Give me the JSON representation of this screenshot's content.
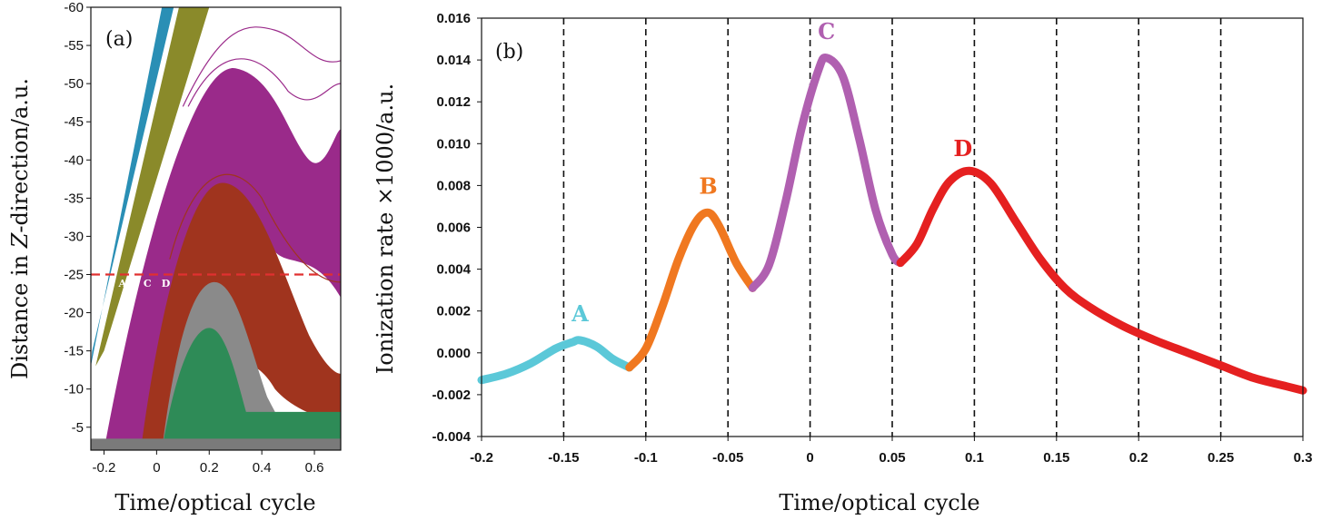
{
  "chart_data": [
    {
      "panel_label": "(a)",
      "type": "line",
      "xlabel": "Time/optical cycle",
      "ylabel_prefix": "Distance in ",
      "ylabel_italic": "Z",
      "ylabel_suffix": "-direction/a.u.",
      "xlim": [
        -0.25,
        0.7
      ],
      "ylim": [
        -2,
        -60
      ],
      "xticks": [
        -0.2,
        0,
        0.2,
        0.4,
        0.6
      ],
      "xtick_labels": [
        "-0.2",
        "0",
        "0.2",
        "0.4",
        "0.6"
      ],
      "yticks": [
        -5,
        -10,
        -15,
        -20,
        -25,
        -30,
        -35,
        -40,
        -45,
        -50,
        -55,
        -60
      ],
      "ytick_labels": [
        "-5",
        "-10",
        "-15",
        "-20",
        "-25",
        "-30",
        "-35",
        "-40",
        "-45",
        "-50",
        "-55",
        "-60"
      ],
      "reference_line": {
        "y": -25,
        "color": "#e03030",
        "style": "dashed"
      },
      "band_labels": [
        "A",
        "B",
        "C",
        "D"
      ],
      "colors": {
        "A": "#2a8fb5",
        "B": "#8a8a2a",
        "C": "#9a2a8a",
        "D": "#a0341e",
        "gray": "#8a8a8a",
        "green": "#2e8b57"
      }
    },
    {
      "panel_label": "(b)",
      "type": "line",
      "xlabel": "Time/optical cycle",
      "ylabel": "Ionization rate ×1000/a.u.",
      "xlim": [
        -0.2,
        0.3
      ],
      "ylim": [
        -0.004,
        0.016
      ],
      "xticks": [
        -0.2,
        -0.15,
        -0.1,
        -0.05,
        0,
        0.05,
        0.1,
        0.15,
        0.2,
        0.25,
        0.3
      ],
      "xtick_labels": [
        "-0.2",
        "-0.15",
        "-0.1",
        "-0.05",
        "0",
        "0.05",
        "0.1",
        "0.15",
        "0.2",
        "0.25",
        "0.3"
      ],
      "yticks": [
        -0.004,
        -0.002,
        0,
        0.002,
        0.004,
        0.006,
        0.008,
        0.01,
        0.012,
        0.014,
        0.016
      ],
      "ytick_labels": [
        "-0.004",
        "-0.002",
        "0.000",
        "0.002",
        "0.004",
        "0.006",
        "0.008",
        "0.010",
        "0.012",
        "0.014",
        "0.016"
      ],
      "vlines": [
        -0.15,
        -0.1,
        -0.05,
        0,
        0.05,
        0.1,
        0.15,
        0.2,
        0.25
      ],
      "series": [
        {
          "name": "A",
          "color": "#5bc8d8",
          "x": [
            -0.2,
            -0.185,
            -0.17,
            -0.155,
            -0.145,
            -0.14,
            -0.13,
            -0.12,
            -0.11
          ],
          "y": [
            -0.0013,
            -0.001,
            -0.0005,
            0.0002,
            0.0005,
            0.0006,
            0.0003,
            -0.0003,
            -0.0007
          ]
        },
        {
          "name": "B",
          "color": "#f07820",
          "x": [
            -0.11,
            -0.1,
            -0.09,
            -0.08,
            -0.07,
            -0.062,
            -0.055,
            -0.045,
            -0.035
          ],
          "y": [
            -0.0007,
            0.0002,
            0.0022,
            0.0045,
            0.0062,
            0.0067,
            0.006,
            0.0043,
            0.0031
          ]
        },
        {
          "name": "C",
          "color": "#b060b0",
          "x": [
            -0.035,
            -0.025,
            -0.015,
            -0.005,
            0.005,
            0.01,
            0.02,
            0.03,
            0.04,
            0.05,
            0.055
          ],
          "y": [
            0.0031,
            0.0042,
            0.0072,
            0.0108,
            0.0135,
            0.0141,
            0.0132,
            0.0102,
            0.0068,
            0.0047,
            0.0043
          ]
        },
        {
          "name": "D",
          "color": "#e52020",
          "x": [
            0.055,
            0.065,
            0.075,
            0.085,
            0.097,
            0.11,
            0.125,
            0.14,
            0.155,
            0.17,
            0.19,
            0.21,
            0.23,
            0.25,
            0.27,
            0.29,
            0.3
          ],
          "y": [
            0.0043,
            0.0052,
            0.0069,
            0.0082,
            0.0087,
            0.0081,
            0.0063,
            0.0045,
            0.0031,
            0.0022,
            0.0013,
            0.0006,
            0.0,
            -0.0006,
            -0.0012,
            -0.0016,
            -0.0018
          ]
        }
      ],
      "peak_labels": [
        {
          "text": "A",
          "x": -0.14,
          "y": 0.0015
        },
        {
          "text": "B",
          "x": -0.062,
          "y": 0.0076
        },
        {
          "text": "C",
          "x": 0.01,
          "y": 0.015
        },
        {
          "text": "D",
          "x": 0.093,
          "y": 0.0094
        }
      ]
    }
  ]
}
